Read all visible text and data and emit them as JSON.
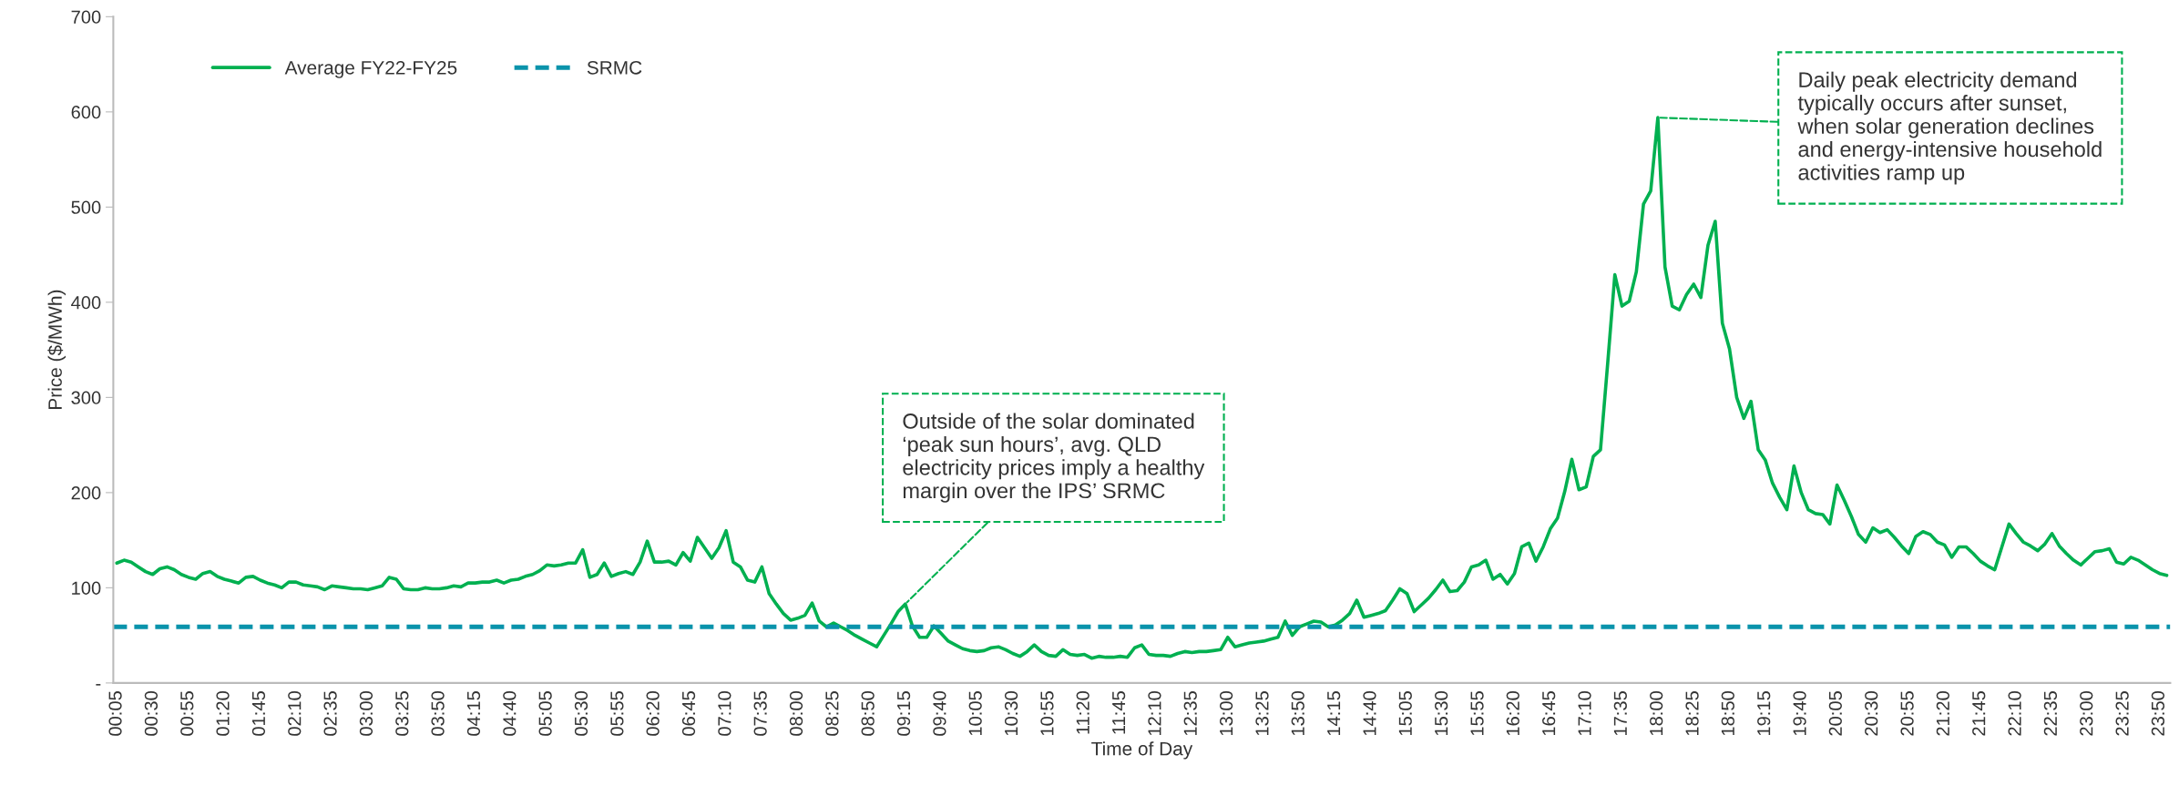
{
  "chart_data": {
    "type": "line",
    "xlabel": "Time of Day",
    "ylabel": "Price ($/MWh)",
    "series": [
      {
        "name": "Average FY22-FY25",
        "color": "#00b050",
        "x": [
          0.083,
          0.167,
          0.25,
          0.333,
          0.417,
          0.5,
          0.583,
          0.667,
          0.75,
          0.833,
          0.917,
          1.0,
          1.083,
          1.167,
          1.25,
          1.333,
          1.417,
          1.5,
          1.583,
          1.667,
          1.75,
          1.833,
          1.917,
          2.0,
          2.083,
          2.167,
          2.25,
          2.333,
          2.417,
          2.5,
          2.583,
          2.667,
          2.75,
          2.833,
          2.917,
          3.0,
          3.083,
          3.167,
          3.25,
          3.333,
          3.417,
          3.5,
          3.583,
          3.667,
          3.75,
          3.833,
          3.917,
          4.0,
          4.083,
          4.167,
          4.25,
          4.333,
          4.417,
          4.5,
          4.583,
          4.667,
          4.75,
          4.833,
          4.917,
          5.0,
          5.083,
          5.167,
          5.25,
          5.333,
          5.417,
          5.5,
          5.583,
          5.667,
          5.75,
          5.833,
          5.917,
          6.0,
          6.083,
          6.167,
          6.25,
          6.333,
          6.417,
          6.5,
          6.583,
          6.667,
          6.75,
          6.833,
          6.917,
          7.0,
          7.083,
          7.167,
          7.25,
          7.333,
          7.417,
          7.5,
          7.583,
          7.667,
          7.75,
          7.833,
          7.917,
          8.0,
          8.083,
          8.167,
          8.25,
          8.333,
          8.417,
          8.5,
          8.583,
          8.667,
          8.75,
          8.833,
          8.917,
          9.0,
          9.083,
          9.167,
          9.25,
          9.333,
          9.417,
          9.5,
          9.583,
          9.667,
          9.75,
          9.833,
          9.917,
          10.0,
          10.083,
          10.167,
          10.25,
          10.333,
          10.417,
          10.5,
          10.583,
          10.667,
          10.75,
          10.833,
          10.917,
          11.0,
          11.083,
          11.167,
          11.25,
          11.333,
          11.417,
          11.5,
          11.583,
          11.667,
          11.75,
          11.833,
          11.917,
          12.0,
          12.083,
          12.167,
          12.25,
          12.333,
          12.417,
          12.5,
          12.583,
          12.667,
          12.75,
          12.833,
          12.917,
          13.0,
          13.083,
          13.167,
          13.25,
          13.333,
          13.417,
          13.5,
          13.583,
          13.667,
          13.75,
          13.833,
          13.917,
          14.0,
          14.083,
          14.167,
          14.25,
          14.333,
          14.417,
          14.5,
          14.583,
          14.667,
          14.75,
          14.833,
          14.917,
          15.0,
          15.083,
          15.167,
          15.25,
          15.333,
          15.417,
          15.5,
          15.583,
          15.667,
          15.75,
          15.833,
          15.917,
          16.0,
          16.083,
          16.167,
          16.25,
          16.333,
          16.417,
          16.5,
          16.583,
          16.667,
          16.75,
          16.833,
          16.917,
          17.0,
          17.083,
          17.167,
          17.25,
          17.333,
          17.417,
          17.5,
          17.583,
          17.667,
          17.75,
          17.833,
          17.917,
          18.0,
          18.083,
          18.167,
          18.25,
          18.333,
          18.417,
          18.5,
          18.583,
          18.667,
          18.75,
          18.833,
          18.917,
          19.0,
          19.083,
          19.167,
          19.25,
          19.333,
          19.417,
          19.5,
          19.583,
          19.667,
          19.75,
          19.833,
          19.917,
          20.0,
          20.083,
          20.167,
          20.25,
          20.333,
          20.417,
          20.5,
          20.583,
          20.667,
          20.75,
          20.833,
          20.917,
          21.0,
          21.083,
          21.167,
          21.25,
          21.333,
          21.417,
          21.5,
          21.583,
          21.667,
          21.75,
          21.833,
          21.917,
          22.0,
          22.083,
          22.167,
          22.25,
          22.333,
          22.417,
          22.5,
          22.583,
          22.667,
          22.75,
          22.833,
          22.917,
          23.0,
          23.083,
          23.167,
          23.25,
          23.333,
          23.417,
          23.5,
          23.583,
          23.667,
          23.75,
          23.833,
          23.917
        ],
        "values": [
          126,
          129,
          127,
          122,
          117,
          114,
          120,
          122,
          119,
          114,
          111,
          109,
          115,
          117,
          112,
          109,
          107,
          105,
          111,
          112,
          108,
          105,
          103,
          100,
          106,
          106,
          103,
          102,
          101,
          98,
          102,
          101,
          100,
          99,
          99,
          98,
          100,
          102,
          111,
          109,
          99,
          98,
          98,
          100,
          99,
          99,
          100,
          102,
          101,
          105,
          105,
          106,
          106,
          108,
          105,
          108,
          109,
          112,
          114,
          118,
          124,
          123,
          124,
          126,
          126,
          140,
          111,
          114,
          126,
          112,
          115,
          117,
          114,
          127,
          149,
          127,
          127,
          128,
          124,
          137,
          128,
          153,
          142,
          131,
          142,
          160,
          127,
          122,
          108,
          106,
          122,
          94,
          83,
          73,
          66,
          68,
          71,
          84,
          65,
          59,
          63,
          59,
          55,
          50,
          46,
          42,
          38,
          50,
          62,
          75,
          83,
          60,
          48,
          48,
          60,
          52,
          44,
          40,
          36,
          34,
          33,
          34,
          37,
          38,
          35,
          31,
          28,
          33,
          40,
          33,
          29,
          28,
          35,
          30,
          29,
          30,
          26,
          28,
          27,
          27,
          28,
          27,
          37,
          40,
          30,
          29,
          29,
          28,
          31,
          33,
          32,
          33,
          33,
          34,
          35,
          48,
          38,
          40,
          42,
          43,
          44,
          46,
          48,
          65,
          50,
          59,
          62,
          65,
          64,
          59,
          61,
          66,
          73,
          87,
          69,
          71,
          73,
          76,
          87,
          99,
          94,
          75,
          82,
          89,
          98,
          108,
          96,
          97,
          106,
          122,
          124,
          129,
          109,
          114,
          104,
          115,
          143,
          147,
          128,
          143,
          162,
          173,
          201,
          235,
          203,
          206,
          238,
          245,
          336,
          429,
          396,
          401,
          432,
          503,
          517,
          594,
          437,
          396,
          392,
          408,
          419,
          405,
          460,
          485,
          378,
          351,
          300,
          278,
          296,
          245,
          234,
          210,
          195,
          182,
          228,
          200,
          182,
          178,
          177,
          167,
          208,
          192,
          175,
          156,
          148,
          163,
          158,
          161,
          153,
          144,
          136,
          154,
          159,
          156,
          148,
          145,
          132,
          143,
          143,
          136,
          128,
          123,
          119,
          143,
          167,
          157,
          148,
          144,
          139,
          146,
          157,
          144,
          136,
          129,
          124,
          131,
          138,
          139,
          141,
          127,
          125,
          132,
          129,
          124,
          119,
          115,
          113
        ]
      }
    ],
    "ref_lines": [
      {
        "axis": "y",
        "value": 59,
        "label": "SRMC",
        "color": "#0a93ab",
        "line_style": "dashed"
      }
    ],
    "annotations": [
      {
        "text": "Outside of the solar dominated\n‘peak sun hours’, avg. QLD\nelectricity prices imply a healthy\nmargin over the IPS’ SRMC",
        "x": 9.25,
        "y": 83
      },
      {
        "text": "Daily peak electricity demand\ntypically occurs after sunset,\nwhen solar generation declines\nand energy-intensive household\nactivities ramp up",
        "x": 18.0,
        "y": 594
      }
    ],
    "xlim": [
      0.042,
      23.958
    ],
    "xticks": [
      {
        "value": 0.083,
        "label": "00:05"
      },
      {
        "value": 0.5,
        "label": "00:30"
      },
      {
        "value": 0.917,
        "label": "00:55"
      },
      {
        "value": 1.333,
        "label": "01:20"
      },
      {
        "value": 1.75,
        "label": "01:45"
      },
      {
        "value": 2.167,
        "label": "02:10"
      },
      {
        "value": 2.583,
        "label": "02:35"
      },
      {
        "value": 3.0,
        "label": "03:00"
      },
      {
        "value": 3.417,
        "label": "03:25"
      },
      {
        "value": 3.833,
        "label": "03:50"
      },
      {
        "value": 4.25,
        "label": "04:15"
      },
      {
        "value": 4.667,
        "label": "04:40"
      },
      {
        "value": 5.083,
        "label": "05:05"
      },
      {
        "value": 5.5,
        "label": "05:30"
      },
      {
        "value": 5.917,
        "label": "05:55"
      },
      {
        "value": 6.333,
        "label": "06:20"
      },
      {
        "value": 6.75,
        "label": "06:45"
      },
      {
        "value": 7.167,
        "label": "07:10"
      },
      {
        "value": 7.583,
        "label": "07:35"
      },
      {
        "value": 8.0,
        "label": "08:00"
      },
      {
        "value": 8.417,
        "label": "08:25"
      },
      {
        "value": 8.833,
        "label": "08:50"
      },
      {
        "value": 9.25,
        "label": "09:15"
      },
      {
        "value": 9.667,
        "label": "09:40"
      },
      {
        "value": 10.083,
        "label": "10:05"
      },
      {
        "value": 10.5,
        "label": "10:30"
      },
      {
        "value": 10.917,
        "label": "10:55"
      },
      {
        "value": 11.333,
        "label": "11:20"
      },
      {
        "value": 11.75,
        "label": "11:45"
      },
      {
        "value": 12.167,
        "label": "12:10"
      },
      {
        "value": 12.583,
        "label": "12:35"
      },
      {
        "value": 13.0,
        "label": "13:00"
      },
      {
        "value": 13.417,
        "label": "13:25"
      },
      {
        "value": 13.833,
        "label": "13:50"
      },
      {
        "value": 14.25,
        "label": "14:15"
      },
      {
        "value": 14.667,
        "label": "14:40"
      },
      {
        "value": 15.083,
        "label": "15:05"
      },
      {
        "value": 15.5,
        "label": "15:30"
      },
      {
        "value": 15.917,
        "label": "15:55"
      },
      {
        "value": 16.333,
        "label": "16:20"
      },
      {
        "value": 16.75,
        "label": "16:45"
      },
      {
        "value": 17.167,
        "label": "17:10"
      },
      {
        "value": 17.583,
        "label": "17:35"
      },
      {
        "value": 18.0,
        "label": "18:00"
      },
      {
        "value": 18.417,
        "label": "18:25"
      },
      {
        "value": 18.833,
        "label": "18:50"
      },
      {
        "value": 19.25,
        "label": "19:15"
      },
      {
        "value": 19.667,
        "label": "19:40"
      },
      {
        "value": 20.083,
        "label": "20:05"
      },
      {
        "value": 20.5,
        "label": "20:30"
      },
      {
        "value": 20.917,
        "label": "20:55"
      },
      {
        "value": 21.333,
        "label": "21:20"
      },
      {
        "value": 21.75,
        "label": "21:45"
      },
      {
        "value": 22.167,
        "label": "22:10"
      },
      {
        "value": 22.583,
        "label": "22:35"
      },
      {
        "value": 23.0,
        "label": "23:00"
      },
      {
        "value": 23.417,
        "label": "23:25"
      },
      {
        "value": 23.833,
        "label": "23:50"
      }
    ],
    "ylim": [
      0,
      700
    ],
    "yticks": [
      {
        "value": 0,
        "label": "-"
      },
      100,
      200,
      300,
      400,
      500,
      600,
      700
    ],
    "legend": "top left",
    "grid": false
  }
}
